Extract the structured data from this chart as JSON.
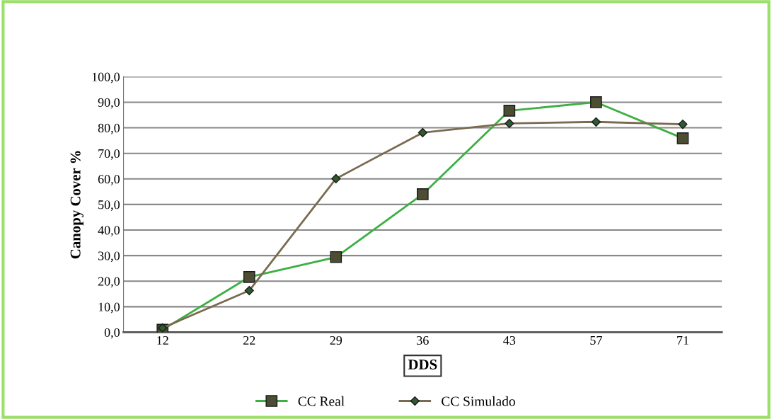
{
  "chart_data": {
    "type": "line",
    "xlabel": "DDS",
    "ylabel": "Canopy Cover %",
    "categories": [
      "12",
      "22",
      "29",
      "36",
      "43",
      "57",
      "71"
    ],
    "series": [
      {
        "name": "CC Real",
        "color": "#3cb043",
        "marker": "square",
        "values": [
          1.0,
          21.6,
          29.4,
          54.0,
          86.7,
          90.0,
          75.9
        ]
      },
      {
        "name": "CC Simulado",
        "color": "#7a6a50",
        "marker": "diamond",
        "values": [
          1.7,
          16.3,
          60.1,
          78.1,
          81.7,
          82.3,
          81.4
        ]
      }
    ],
    "ylim": [
      0,
      100
    ],
    "yticks": [
      {
        "value": 0,
        "label": "0,0"
      },
      {
        "value": 10,
        "label": "10,0"
      },
      {
        "value": 20,
        "label": "20,0"
      },
      {
        "value": 30,
        "label": "30,0"
      },
      {
        "value": 40,
        "label": "40,0"
      },
      {
        "value": 50,
        "label": "50,0"
      },
      {
        "value": 60,
        "label": "60,0"
      },
      {
        "value": 70,
        "label": "70,0"
      },
      {
        "value": 80,
        "label": "80,0"
      },
      {
        "value": 90,
        "label": "90,0"
      },
      {
        "value": 100,
        "label": "100,0"
      }
    ],
    "grid": "y",
    "legend": "bottom",
    "line_style": "solid"
  }
}
